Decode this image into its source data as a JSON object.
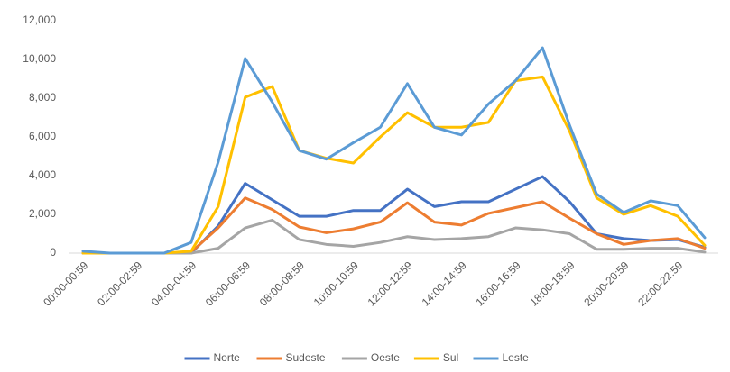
{
  "chart_data": {
    "type": "line",
    "categories": [
      "00:00-00:59",
      null,
      "02:00-02:59",
      null,
      "04:00-04:59",
      null,
      "06:00-06:59",
      null,
      "08:00-08:59",
      null,
      "10:00-10:59",
      null,
      "12:00-12:59",
      null,
      "14:00-14:59",
      null,
      "16:00-16:59",
      null,
      "18:00-18:59",
      null,
      "20:00-20:59",
      null,
      "22:00-22:59",
      null
    ],
    "series": [
      {
        "name": "Norte",
        "color": "#4472c4",
        "values": [
          0,
          0,
          0,
          0,
          0,
          1400,
          3600,
          2750,
          1900,
          1900,
          2200,
          2200,
          3300,
          2400,
          2650,
          2650,
          3300,
          3950,
          2650,
          1000,
          750,
          650,
          700,
          300
        ]
      },
      {
        "name": "Sudeste",
        "color": "#ed7d31",
        "values": [
          0,
          0,
          0,
          0,
          50,
          1300,
          2850,
          2250,
          1350,
          1050,
          1250,
          1600,
          2600,
          1600,
          1450,
          2050,
          2350,
          2650,
          1800,
          1000,
          450,
          650,
          750,
          250
        ]
      },
      {
        "name": "Oeste",
        "color": "#a5a5a5",
        "values": [
          0,
          0,
          0,
          0,
          0,
          250,
          1300,
          1700,
          700,
          450,
          350,
          550,
          850,
          700,
          750,
          850,
          1300,
          1200,
          1000,
          200,
          200,
          250,
          250,
          50
        ]
      },
      {
        "name": "Sul",
        "color": "#ffc000",
        "values": [
          0,
          0,
          0,
          0,
          100,
          2400,
          8050,
          8600,
          5300,
          4900,
          4650,
          6000,
          7250,
          6500,
          6500,
          6750,
          8900,
          9100,
          6300,
          2850,
          2000,
          2450,
          1900,
          400
        ]
      },
      {
        "name": "Leste",
        "color": "#5b9bd5",
        "values": [
          100,
          0,
          0,
          0,
          550,
          4700,
          10050,
          7800,
          5300,
          4850,
          5700,
          6500,
          8750,
          6500,
          6100,
          7700,
          8900,
          10600,
          6600,
          3050,
          2100,
          2700,
          2450,
          800
        ]
      }
    ],
    "ylim": [
      0,
      12000
    ],
    "yticks": [
      0,
      {
        "value": 2000,
        "label": "2,000"
      },
      {
        "value": 4000,
        "label": "4,000"
      },
      {
        "value": 6000,
        "label": "6,000"
      },
      {
        "value": 8000,
        "label": "8,000"
      },
      {
        "value": 10000,
        "label": "10,000"
      },
      {
        "value": 12000,
        "label": "12,000"
      }
    ],
    "grid": false,
    "legend": "bottom"
  }
}
